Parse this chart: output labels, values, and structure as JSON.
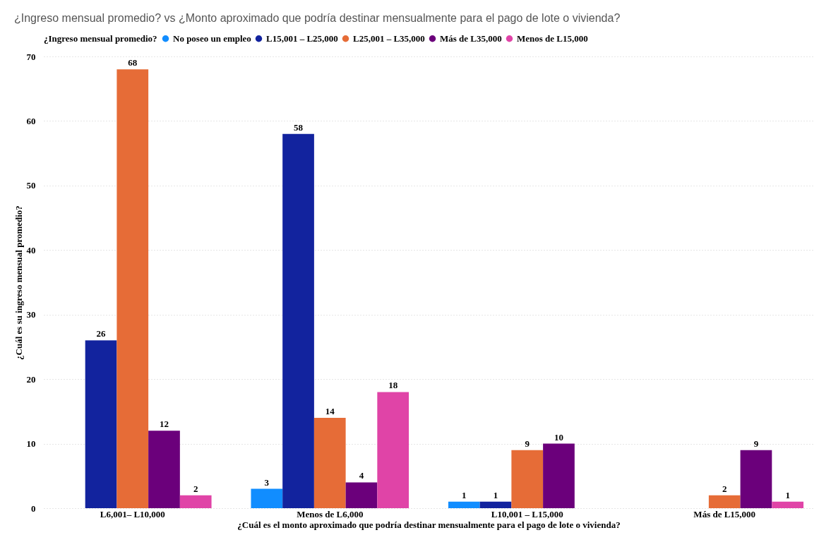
{
  "chart_data": {
    "type": "bar",
    "title": "¿Ingreso mensual promedio? vs ¿Monto aproximado que podría destinar mensualmente para el pago de lote o vivienda?",
    "xlabel": "¿Cuál es el monto aproximado que podría destinar mensualmente para el pago de lote o vivienda?",
    "ylabel": "¿Cuál es su ingreso mensual promedio?",
    "legend_title": "¿Ingreso mensual promedio?",
    "legend": "top left",
    "categories": [
      "L6,001– L10,000",
      "Menos de L6,000",
      "L10,001 – L15,000",
      "Más de L15,000"
    ],
    "series": [
      {
        "name": "No poseo un empleo",
        "color": "#118dff",
        "values": [
          null,
          3,
          1,
          null
        ]
      },
      {
        "name": "L15,001 – L25,000",
        "color": "#12239e",
        "values": [
          26,
          58,
          1,
          null
        ]
      },
      {
        "name": "L25,001 – L35,000",
        "color": "#e66c37",
        "values": [
          68,
          14,
          9,
          2
        ]
      },
      {
        "name": "Más de L35,000",
        "color": "#6b007b",
        "values": [
          12,
          4,
          10,
          9
        ]
      },
      {
        "name": "Menos de L15,000",
        "color": "#e044a7",
        "values": [
          2,
          18,
          null,
          1
        ]
      }
    ],
    "ylim": [
      0,
      70
    ],
    "yticks": [
      0,
      10,
      20,
      30,
      40,
      50,
      60,
      70
    ],
    "grid": "y",
    "data_labels": true
  }
}
